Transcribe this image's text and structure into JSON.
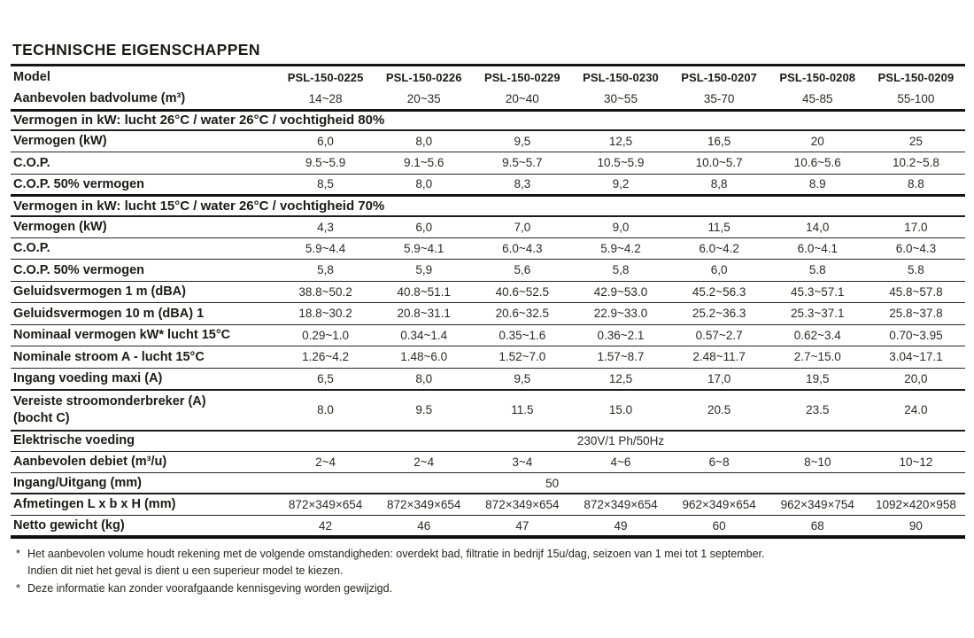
{
  "page": {
    "title": "TECHNISCHE EIGENSCHAPPEN"
  },
  "table": {
    "model_label": "Model",
    "models": [
      "PSL-150-0225",
      "PSL-150-0226",
      "PSL-150-0229",
      "PSL-150-0230",
      "PSL-150-0207",
      "PSL-150-0208",
      "PSL-150-0209"
    ],
    "rows": [
      {
        "type": "data",
        "label": "Aanbevolen badvolume (m³)",
        "values": [
          "14~28",
          "20~35",
          "20~40",
          "30~55",
          "35-70",
          "45-85",
          "55-100"
        ]
      },
      {
        "type": "section",
        "label": "Vermogen in kW: lucht 26°C / water 26°C / vochtigheid 80%"
      },
      {
        "type": "data",
        "label": "Vermogen (kW)",
        "values": [
          "6,0",
          "8,0",
          "9,5",
          "12,5",
          "16,5",
          "20",
          "25"
        ]
      },
      {
        "type": "data",
        "label": "C.O.P.",
        "values": [
          "9.5~5.9",
          "9.1~5.6",
          "9.5~5.7",
          "10.5~5.9",
          "10.0~5.7",
          "10.6~5.6",
          "10.2~5.8"
        ]
      },
      {
        "type": "data",
        "label": "C.O.P. 50% vermogen",
        "values": [
          "8,5",
          "8,0",
          "8,3",
          "9,2",
          "8,8",
          "8.9",
          "8.8"
        ]
      },
      {
        "type": "section",
        "label": "Vermogen in kW: lucht 15°C / water 26°C / vochtigheid 70%"
      },
      {
        "type": "data",
        "label": "Vermogen (kW)",
        "values": [
          "4,3",
          "6,0",
          "7,0",
          "9,0",
          "11,5",
          "14,0",
          "17.0"
        ]
      },
      {
        "type": "data",
        "label": "C.O.P.",
        "values": [
          "5.9~4.4",
          "5.9~4.1",
          "6.0~4.3",
          "5.9~4.2",
          "6.0~4.2",
          "6.0~4.1",
          "6.0~4.3"
        ]
      },
      {
        "type": "data",
        "label": "C.O.P. 50% vermogen",
        "values": [
          "5,8",
          "5,9",
          "5,6",
          "5,8",
          "6,0",
          "5.8",
          "5.8"
        ]
      },
      {
        "type": "data",
        "label": "Geluidsvermogen 1 m (dBA)",
        "values": [
          "38.8~50.2",
          "40.8~51.1",
          "40.6~52.5",
          "42.9~53.0",
          "45.2~56.3",
          "45.3~57.1",
          "45.8~57.8"
        ]
      },
      {
        "type": "data",
        "label": "Geluidsvermogen 10 m (dBA) 1",
        "values": [
          "18.8~30.2",
          "20.8~31.1",
          "20.6~32.5",
          "22.9~33.0",
          "25.2~36.3",
          "25.3~37.1",
          "25.8~37.8"
        ]
      },
      {
        "type": "data",
        "label": "Nominaal vermogen kW* lucht 15°C",
        "values": [
          "0.29~1.0",
          "0.34~1.4",
          "0.35~1.6",
          "0.36~2.1",
          "0.57~2.7",
          "0.62~3.4",
          "0.70~3.95"
        ]
      },
      {
        "type": "data",
        "label": "Nominale stroom A - lucht 15°C",
        "values": [
          "1.26~4.2",
          "1.48~6.0",
          "1.52~7.0",
          "1.57~8.7",
          "2.48~11.7",
          "2.7~15.0",
          "3.04~17.1"
        ]
      },
      {
        "type": "data",
        "label": "Ingang voeding maxi (A)",
        "values": [
          "6,5",
          "8,0",
          "9,5",
          "12,5",
          "17,0",
          "19,5",
          "20,0"
        ]
      },
      {
        "type": "data",
        "label": "Vereiste stroomonderbreker (A)\n(bocht C)",
        "values": [
          "8.0",
          "9.5",
          "11.5",
          "15.0",
          "20.5",
          "23.5",
          "24.0"
        ]
      },
      {
        "type": "span",
        "label": "Elektrische voeding",
        "value": "230V/1 Ph/50Hz",
        "align": "center"
      },
      {
        "type": "data",
        "label": "Aanbevolen debiet (m³/u)",
        "values": [
          "2~4",
          "2~4",
          "3~4",
          "4~6",
          "6~8",
          "8~10",
          "10~12"
        ]
      },
      {
        "type": "span",
        "label": "Ingang/Uitgang (mm)",
        "value": "50",
        "align": "left"
      },
      {
        "type": "data",
        "label": "Afmetingen L x b x H (mm)",
        "values": [
          "872×349×654",
          "872×349×654",
          "872×349×654",
          "872×349×654",
          "962×349×654",
          "962×349×754",
          "1092×420×958"
        ]
      },
      {
        "type": "data",
        "label": "Netto gewicht (kg)",
        "values": [
          "42",
          "46",
          "47",
          "49",
          "60",
          "68",
          "90"
        ]
      }
    ]
  },
  "footnotes": [
    {
      "marker": "*",
      "text": "Het aanbevolen volume houdt rekening met de volgende omstandigheden: overdekt bad, filtratie in bedrijf 15u/dag, seizoen van 1 mei tot 1 september."
    },
    {
      "marker": "",
      "text": "Indien dit niet het geval is dient u een superieur model te kiezen."
    },
    {
      "marker": "*",
      "text": "Deze informatie kan zonder voorafgaande kennisgeving worden gewijzigd."
    }
  ]
}
